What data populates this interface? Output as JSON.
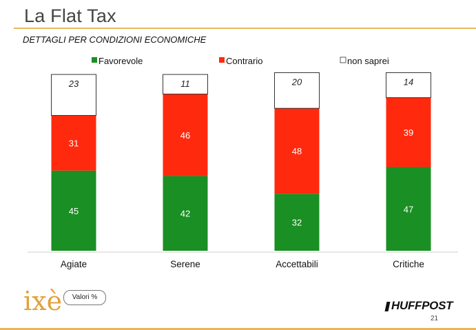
{
  "header": {
    "title": "La Flat Tax",
    "subtitle": "DETTAGLI PER CONDIZIONI ECONOMICHE"
  },
  "footer": {
    "badge_label": "Valori %",
    "publisher": "HUFFPOST",
    "page_number": "21",
    "logo_text": "ixè"
  },
  "colors": {
    "favorevole": "#1a8f23",
    "contrario": "#ff2a0e",
    "non_saprei": "#ffffff",
    "accent": "#e8b55a"
  },
  "chart_data": {
    "type": "bar",
    "stacked": true,
    "legend_position": "top",
    "categories": [
      "Agiate",
      "Serene",
      "Accettabili",
      "Critiche"
    ],
    "series": [
      {
        "name": "Favorevole",
        "values": [
          45,
          42,
          32,
          47
        ]
      },
      {
        "name": "Contrario",
        "values": [
          31,
          46,
          48,
          39
        ]
      },
      {
        "name": "non saprei",
        "values": [
          23,
          11,
          20,
          14
        ]
      }
    ],
    "ylim": [
      0,
      100
    ]
  }
}
